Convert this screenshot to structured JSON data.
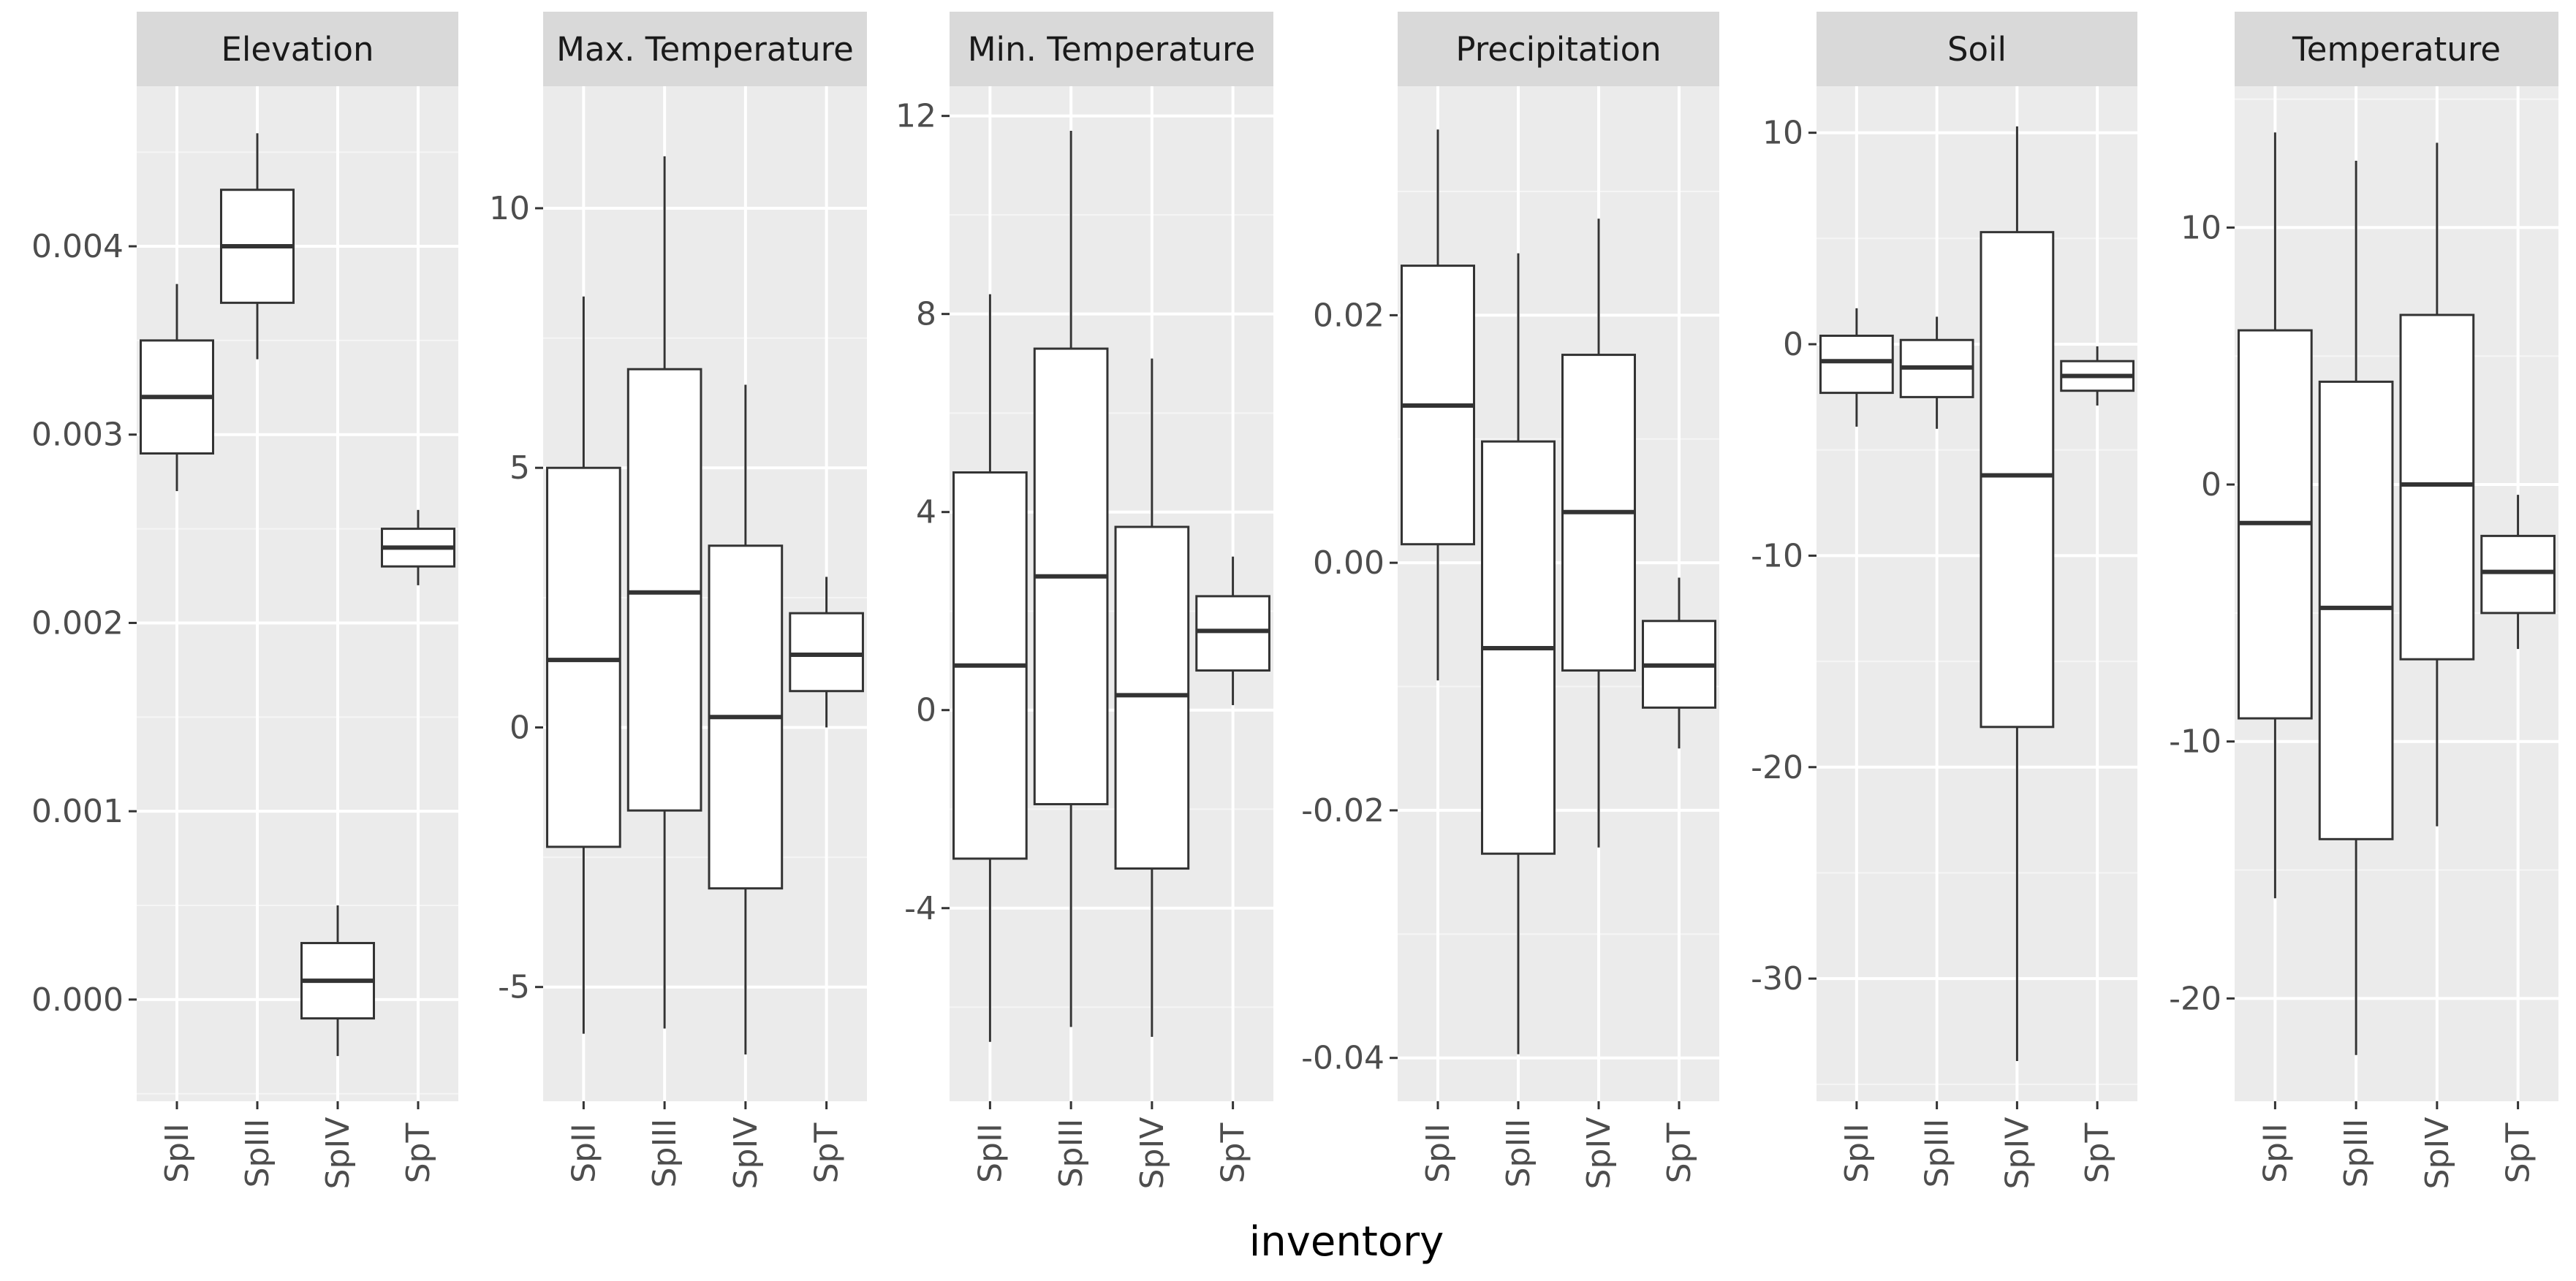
{
  "chart_data": {
    "type": "boxplot",
    "xlabel": "inventory",
    "ylabel": "",
    "categories": [
      "SpII",
      "SpIII",
      "SpIV",
      "SpT"
    ],
    "colors": {
      "panel_bg": "#ebebeb",
      "strip_bg": "#d9d9d9",
      "grid_major": "#ffffff",
      "grid_minor": "#f5f5f5",
      "box_fill": "#ffffff",
      "box_line": "#333333",
      "tick_text": "#4d4d4d",
      "strip_text": "#1a1a1a"
    },
    "grid": true,
    "legend": "none",
    "facets": [
      {
        "title": "Elevation",
        "ylim": [
          -0.00054,
          0.00485
        ],
        "yticks": [
          0.0,
          0.001,
          0.002,
          0.003,
          0.004
        ],
        "ytick_labels": [
          "0.000",
          "0.001",
          "0.002",
          "0.003",
          "0.004"
        ],
        "boxes": [
          {
            "category": "SpII",
            "min": 0.0027,
            "q1": 0.0029,
            "median": 0.0032,
            "q3": 0.0035,
            "max": 0.0038
          },
          {
            "category": "SpIII",
            "min": 0.0034,
            "q1": 0.0037,
            "median": 0.004,
            "q3": 0.0043,
            "max": 0.0046
          },
          {
            "category": "SpIV",
            "min": -0.0003,
            "q1": -0.0001,
            "median": 0.0001,
            "q3": 0.0003,
            "max": 0.0005
          },
          {
            "category": "SpT",
            "min": 0.0022,
            "q1": 0.0023,
            "median": 0.0024,
            "q3": 0.0025,
            "max": 0.0026
          }
        ]
      },
      {
        "title": "Max. Temperature",
        "ylim": [
          -7.2,
          12.35
        ],
        "yticks": [
          -5,
          0,
          5,
          10
        ],
        "ytick_labels": [
          "-5",
          "0",
          "5",
          "10"
        ],
        "boxes": [
          {
            "category": "SpII",
            "min": -5.9,
            "q1": -2.3,
            "median": 1.3,
            "q3": 5.0,
            "max": 8.3
          },
          {
            "category": "SpIII",
            "min": -5.8,
            "q1": -1.6,
            "median": 2.6,
            "q3": 6.9,
            "max": 11.0
          },
          {
            "category": "SpIV",
            "min": -6.3,
            "q1": -3.1,
            "median": 0.2,
            "q3": 3.5,
            "max": 6.6
          },
          {
            "category": "SpT",
            "min": 0.0,
            "q1": 0.7,
            "median": 1.4,
            "q3": 2.2,
            "max": 2.9
          }
        ]
      },
      {
        "title": "Min. Temperature",
        "ylim": [
          -7.9,
          12.6
        ],
        "yticks": [
          -4,
          0,
          4,
          8,
          12
        ],
        "ytick_labels": [
          "-4",
          "0",
          "4",
          "8",
          "12"
        ],
        "boxes": [
          {
            "category": "SpII",
            "min": -6.7,
            "q1": -3.0,
            "median": 0.9,
            "q3": 4.8,
            "max": 8.4
          },
          {
            "category": "SpIII",
            "min": -6.4,
            "q1": -1.9,
            "median": 2.7,
            "q3": 7.3,
            "max": 11.7
          },
          {
            "category": "SpIV",
            "min": -6.6,
            "q1": -3.2,
            "median": 0.3,
            "q3": 3.7,
            "max": 7.1
          },
          {
            "category": "SpT",
            "min": 0.1,
            "q1": 0.8,
            "median": 1.6,
            "q3": 2.3,
            "max": 3.1
          }
        ]
      },
      {
        "title": "Precipitation",
        "ylim": [
          -0.0435,
          0.0385
        ],
        "yticks": [
          -0.04,
          -0.02,
          0.0,
          0.02
        ],
        "ytick_labels": [
          "-0.04",
          "-0.02",
          "0.00",
          "0.02"
        ],
        "boxes": [
          {
            "category": "SpII",
            "min": -0.0095,
            "q1": 0.0015,
            "median": 0.0127,
            "q3": 0.024,
            "max": 0.035
          },
          {
            "category": "SpIII",
            "min": -0.0397,
            "q1": -0.0235,
            "median": -0.0069,
            "q3": 0.0098,
            "max": 0.025
          },
          {
            "category": "SpIV",
            "min": -0.023,
            "q1": -0.0087,
            "median": 0.0041,
            "q3": 0.0168,
            "max": 0.0278
          },
          {
            "category": "SpT",
            "min": -0.015,
            "q1": -0.0117,
            "median": -0.0083,
            "q3": -0.0047,
            "max": -0.0012
          }
        ]
      },
      {
        "title": "Soil",
        "ylim": [
          -35.8,
          12.2
        ],
        "yticks": [
          -30,
          -20,
          -10,
          0,
          10
        ],
        "ytick_labels": [
          "-30",
          "-20",
          "-10",
          "0",
          "10"
        ],
        "boxes": [
          {
            "category": "SpII",
            "min": -3.9,
            "q1": -2.3,
            "median": -0.8,
            "q3": 0.4,
            "max": 1.7
          },
          {
            "category": "SpIII",
            "min": -4.0,
            "q1": -2.5,
            "median": -1.1,
            "q3": 0.2,
            "max": 1.3
          },
          {
            "category": "SpIV",
            "min": -33.9,
            "q1": -18.1,
            "median": -6.2,
            "q3": 5.3,
            "max": 10.3
          },
          {
            "category": "SpT",
            "min": -2.9,
            "q1": -2.2,
            "median": -1.5,
            "q3": -0.8,
            "max": -0.1
          }
        ]
      },
      {
        "title": "Temperature",
        "ylim": [
          -24.0,
          15.5
        ],
        "yticks": [
          -20,
          -10,
          0,
          10
        ],
        "ytick_labels": [
          "-20",
          "-10",
          "0",
          "10"
        ],
        "boxes": [
          {
            "category": "SpII",
            "min": -16.1,
            "q1": -9.1,
            "median": -1.5,
            "q3": 6.0,
            "max": 13.7
          },
          {
            "category": "SpIII",
            "min": -22.2,
            "q1": -13.8,
            "median": -4.8,
            "q3": 4.0,
            "max": 12.6
          },
          {
            "category": "SpIV",
            "min": -13.3,
            "q1": -6.8,
            "median": 0.0,
            "q3": 6.6,
            "max": 13.3
          },
          {
            "category": "SpT",
            "min": -6.4,
            "q1": -5.0,
            "median": -3.4,
            "q3": -2.0,
            "max": -0.4
          }
        ]
      }
    ]
  }
}
